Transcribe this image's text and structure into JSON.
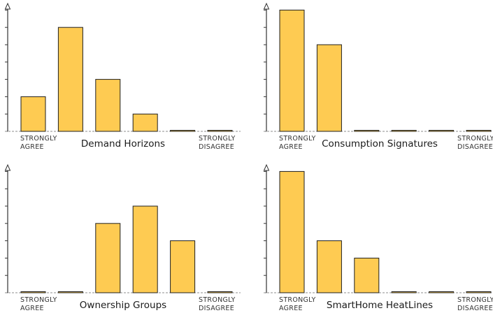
{
  "theme": {
    "bar_fill": "#fecb52",
    "bar_stroke": "#1f1f1f",
    "axis_color": "#333333",
    "baseline_color": "#8c8c8c"
  },
  "chart_data": [
    {
      "type": "bar",
      "title": "Demand Horizons",
      "categories": [
        "",
        "",
        "",
        "",
        "",
        ""
      ],
      "end_labels": {
        "left": [
          "STRONGLY",
          "AGREE"
        ],
        "right": [
          "STRONGLY",
          "DISAGREE"
        ]
      },
      "values": [
        2,
        6,
        3,
        1,
        0,
        0
      ],
      "ylim": [
        0,
        7
      ],
      "yticks": 7,
      "grid": false,
      "xlabel": "",
      "ylabel": ""
    },
    {
      "type": "bar",
      "title": "Consumption Signatures",
      "categories": [
        "",
        "",
        "",
        "",
        "",
        ""
      ],
      "end_labels": {
        "left": [
          "STRONGLY",
          "AGREE"
        ],
        "right": [
          "STRONGLY",
          "DISAGREE"
        ]
      },
      "values": [
        7,
        5,
        0,
        0,
        0,
        0
      ],
      "ylim": [
        0,
        7
      ],
      "yticks": 7,
      "grid": false,
      "xlabel": "",
      "ylabel": ""
    },
    {
      "type": "bar",
      "title": "Ownership Groups",
      "categories": [
        "",
        "",
        "",
        "",
        "",
        ""
      ],
      "end_labels": {
        "left": [
          "STRONGLY",
          "AGREE"
        ],
        "right": [
          "STRONGLY",
          "DISAGREE"
        ]
      },
      "values": [
        0,
        0,
        4,
        5,
        3,
        0
      ],
      "ylim": [
        0,
        7
      ],
      "yticks": 7,
      "grid": false,
      "xlabel": "",
      "ylabel": ""
    },
    {
      "type": "bar",
      "title": "SmartHome HeatLines",
      "categories": [
        "",
        "",
        "",
        "",
        "",
        ""
      ],
      "end_labels": {
        "left": [
          "STRONGLY",
          "AGREE"
        ],
        "right": [
          "STRONGLY",
          "DISAGREE"
        ]
      },
      "values": [
        7,
        3,
        2,
        0,
        0,
        0
      ],
      "ylim": [
        0,
        7
      ],
      "yticks": 7,
      "grid": false,
      "xlabel": "",
      "ylabel": ""
    }
  ]
}
